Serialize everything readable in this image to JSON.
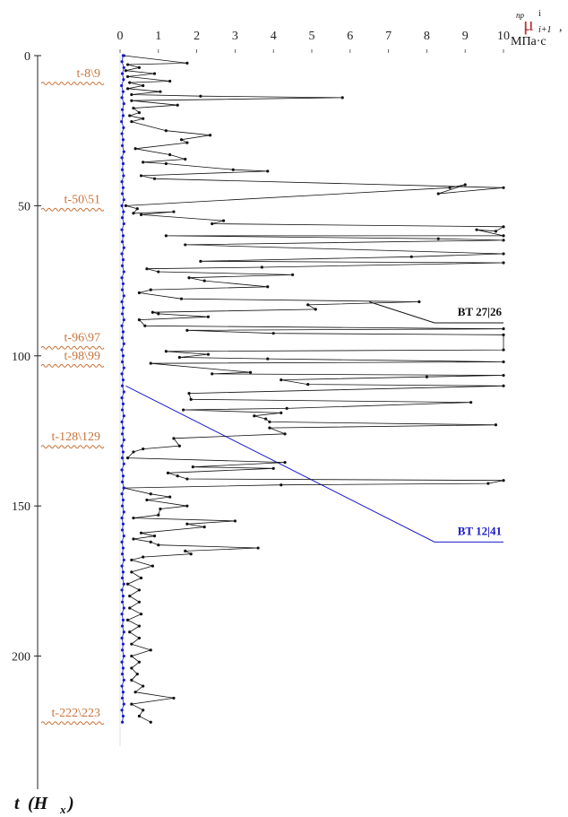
{
  "chart_data": {
    "type": "line",
    "y_axis": {
      "title_main": "t",
      "title_sub": "(H",
      "title_sub_index": "x",
      "title_close": ")",
      "ticks": [
        0,
        50,
        100,
        150,
        200
      ],
      "range": [
        0,
        230
      ],
      "direction": "downward"
    },
    "x_axis": {
      "ticks": [
        0,
        1,
        2,
        3,
        4,
        5,
        6,
        7,
        8,
        9,
        10
      ],
      "range": [
        0,
        10
      ],
      "position": "top",
      "label_symbol": "μ",
      "label_superscript_left": "пр",
      "label_superscript_right": "i",
      "label_subscript": "i+1",
      "label_comma": ",",
      "label_units": "МПа·с"
    },
    "event_labels": [
      {
        "text": "t-8\\9",
        "t": 9
      },
      {
        "text": "t-50\\51",
        "t": 51
      },
      {
        "text": "t-96\\97",
        "t": 97
      },
      {
        "text": "t-98\\99",
        "t": 103
      },
      {
        "text": "t-128\\129",
        "t": 130
      },
      {
        "text": "t-222\\223",
        "t": 222
      }
    ],
    "callouts": [
      {
        "text": "BT 27|26",
        "color": "#111111",
        "from": {
          "x": 6.5,
          "t": 82
        },
        "to": {
          "x": 8.2,
          "t": 89
        }
      },
      {
        "text": "BT 12|41",
        "color": "#1a1acc",
        "from": {
          "x": 0.15,
          "t": 110
        },
        "to": {
          "x": 8.2,
          "t": 162
        }
      }
    ],
    "series": [
      {
        "color": "#1a1acc",
        "marker": "dot",
        "values": [
          [
            0.08,
            0
          ],
          [
            0.05,
            2
          ],
          [
            0.1,
            4
          ],
          [
            0.06,
            6
          ],
          [
            0.09,
            8
          ],
          [
            0.04,
            10
          ],
          [
            0.08,
            12
          ],
          [
            0.05,
            14
          ],
          [
            0.1,
            16
          ],
          [
            0.06,
            18
          ],
          [
            0.08,
            20
          ],
          [
            0.04,
            22
          ],
          [
            0.09,
            24
          ],
          [
            0.05,
            26
          ],
          [
            0.08,
            28
          ],
          [
            0.06,
            30
          ],
          [
            0.1,
            32
          ],
          [
            0.05,
            34
          ],
          [
            0.08,
            36
          ],
          [
            0.06,
            38
          ],
          [
            0.09,
            40
          ],
          [
            0.05,
            42
          ],
          [
            0.08,
            44
          ],
          [
            0.06,
            46
          ],
          [
            0.1,
            48
          ],
          [
            0.05,
            50
          ],
          [
            0.09,
            52
          ],
          [
            0.06,
            54
          ],
          [
            0.1,
            56
          ],
          [
            0.05,
            58
          ],
          [
            0.08,
            60
          ],
          [
            0.06,
            62
          ],
          [
            0.1,
            64
          ],
          [
            0.05,
            66
          ],
          [
            0.08,
            68
          ],
          [
            0.06,
            70
          ],
          [
            0.1,
            72
          ],
          [
            0.05,
            74
          ],
          [
            0.08,
            76
          ],
          [
            0.06,
            78
          ],
          [
            0.1,
            80
          ],
          [
            0.05,
            82
          ],
          [
            0.08,
            84
          ],
          [
            0.06,
            86
          ],
          [
            0.1,
            88
          ],
          [
            0.05,
            90
          ],
          [
            0.08,
            92
          ],
          [
            0.06,
            94
          ],
          [
            0.1,
            96
          ],
          [
            0.05,
            98
          ],
          [
            0.08,
            100
          ],
          [
            0.06,
            102
          ],
          [
            0.1,
            104
          ],
          [
            0.05,
            106
          ],
          [
            0.08,
            108
          ],
          [
            0.06,
            110
          ],
          [
            0.1,
            112
          ],
          [
            0.05,
            114
          ],
          [
            0.08,
            116
          ],
          [
            0.06,
            118
          ],
          [
            0.1,
            120
          ],
          [
            0.05,
            122
          ],
          [
            0.08,
            124
          ],
          [
            0.06,
            126
          ],
          [
            0.1,
            128
          ],
          [
            0.05,
            130
          ],
          [
            0.08,
            132
          ],
          [
            0.06,
            134
          ],
          [
            0.1,
            136
          ],
          [
            0.05,
            138
          ],
          [
            0.08,
            140
          ],
          [
            0.06,
            142
          ],
          [
            0.1,
            144
          ],
          [
            0.05,
            146
          ],
          [
            0.08,
            148
          ],
          [
            0.06,
            150
          ],
          [
            0.1,
            152
          ],
          [
            0.05,
            154
          ],
          [
            0.08,
            156
          ],
          [
            0.06,
            158
          ],
          [
            0.1,
            160
          ],
          [
            0.05,
            162
          ],
          [
            0.08,
            164
          ],
          [
            0.06,
            166
          ],
          [
            0.1,
            168
          ],
          [
            0.05,
            170
          ],
          [
            0.08,
            172
          ],
          [
            0.06,
            174
          ],
          [
            0.1,
            176
          ],
          [
            0.05,
            178
          ],
          [
            0.08,
            180
          ],
          [
            0.06,
            182
          ],
          [
            0.1,
            184
          ],
          [
            0.05,
            186
          ],
          [
            0.08,
            188
          ],
          [
            0.06,
            190
          ],
          [
            0.1,
            192
          ],
          [
            0.05,
            194
          ],
          [
            0.08,
            196
          ],
          [
            0.06,
            198
          ],
          [
            0.1,
            200
          ],
          [
            0.05,
            202
          ],
          [
            0.08,
            204
          ],
          [
            0.06,
            206
          ],
          [
            0.1,
            208
          ],
          [
            0.05,
            210
          ],
          [
            0.08,
            212
          ],
          [
            0.06,
            214
          ],
          [
            0.1,
            216
          ],
          [
            0.05,
            218
          ],
          [
            0.08,
            220
          ],
          [
            0.06,
            222
          ]
        ]
      },
      {
        "color": "#111111",
        "marker": "dot",
        "values": [
          [
            0.1,
            0
          ],
          [
            1.75,
            2.5
          ],
          [
            0.2,
            3
          ],
          [
            0.5,
            4
          ],
          [
            0.15,
            5
          ],
          [
            0.9,
            6
          ],
          [
            0.2,
            7
          ],
          [
            1.3,
            8.5
          ],
          [
            0.25,
            9
          ],
          [
            0.6,
            10
          ],
          [
            0.2,
            11
          ],
          [
            1.05,
            12
          ],
          [
            0.3,
            13
          ],
          [
            2.1,
            13.5
          ],
          [
            5.8,
            14
          ],
          [
            0.3,
            15
          ],
          [
            1.5,
            16.5
          ],
          [
            0.35,
            17.5
          ],
          [
            0.5,
            19
          ],
          [
            0.25,
            20
          ],
          [
            0.6,
            21
          ],
          [
            0.3,
            22
          ],
          [
            1.2,
            25
          ],
          [
            2.35,
            26.5
          ],
          [
            1.6,
            28
          ],
          [
            1.75,
            29
          ],
          [
            0.4,
            31
          ],
          [
            1.3,
            33
          ],
          [
            1.7,
            34.5
          ],
          [
            0.6,
            35.5
          ],
          [
            1.2,
            36
          ],
          [
            2.95,
            38
          ],
          [
            3.85,
            38.5
          ],
          [
            0.55,
            40
          ],
          [
            0.9,
            41
          ],
          [
            10,
            44
          ],
          [
            8.3,
            46
          ],
          [
            9,
            43
          ],
          [
            8.6,
            44
          ],
          [
            0.15,
            50
          ],
          [
            0.45,
            51
          ],
          [
            0.35,
            52.5
          ],
          [
            1.4,
            52
          ],
          [
            0.55,
            53
          ],
          [
            2.7,
            55
          ],
          [
            2.4,
            56
          ],
          [
            10,
            57
          ],
          [
            9.8,
            58.5
          ],
          [
            9.3,
            58
          ],
          [
            10,
            60
          ],
          [
            1.2,
            60
          ],
          [
            8.3,
            61
          ],
          [
            10,
            61.5
          ],
          [
            1.7,
            63
          ],
          [
            10,
            66
          ],
          [
            7.6,
            67
          ],
          [
            2.1,
            68.5
          ],
          [
            10,
            69
          ],
          [
            3.7,
            70.5
          ],
          [
            0.7,
            71
          ],
          [
            1.0,
            72
          ],
          [
            4.5,
            73
          ],
          [
            1.8,
            74
          ],
          [
            2.2,
            75
          ],
          [
            3.85,
            77
          ],
          [
            0.8,
            78
          ],
          [
            0.5,
            79
          ],
          [
            1.6,
            81
          ],
          [
            7.8,
            82
          ],
          [
            4.9,
            83
          ],
          [
            5.1,
            84.5
          ],
          [
            0.85,
            85.5
          ],
          [
            1.0,
            86
          ],
          [
            2.3,
            87
          ],
          [
            0.5,
            88
          ],
          [
            0.65,
            90
          ],
          [
            10,
            91
          ],
          [
            1.75,
            91.5
          ],
          [
            4.0,
            92.5
          ],
          [
            10,
            93
          ],
          [
            10,
            98
          ],
          [
            1.2,
            98.5
          ],
          [
            2.3,
            99.5
          ],
          [
            1.55,
            100.5
          ],
          [
            3.85,
            101
          ],
          [
            10,
            102
          ],
          [
            0.8,
            102.5
          ],
          [
            3.4,
            105.5
          ],
          [
            2.4,
            106
          ],
          [
            10,
            106.5
          ],
          [
            8.0,
            107
          ],
          [
            4.2,
            108
          ],
          [
            4.9,
            109.5
          ],
          [
            10,
            110
          ],
          [
            1.8,
            112.5
          ],
          [
            1.85,
            114.5
          ],
          [
            9.15,
            115.5
          ],
          [
            4.35,
            117.5
          ],
          [
            1.65,
            118
          ],
          [
            4.2,
            119
          ],
          [
            3.5,
            120
          ],
          [
            3.8,
            121
          ],
          [
            3.9,
            122
          ],
          [
            9.8,
            123
          ],
          [
            3.9,
            124
          ],
          [
            4.3,
            126
          ],
          [
            1.4,
            127.5
          ],
          [
            1.55,
            130
          ],
          [
            0.6,
            131
          ],
          [
            0.35,
            132
          ],
          [
            0.2,
            134
          ],
          [
            4.3,
            135.5
          ],
          [
            1.9,
            137
          ],
          [
            4.0,
            137.5
          ],
          [
            1.25,
            139
          ],
          [
            1.5,
            140
          ],
          [
            1.75,
            141
          ],
          [
            10,
            141.5
          ],
          [
            9.6,
            142.5
          ],
          [
            4.2,
            143
          ],
          [
            0.1,
            144
          ],
          [
            0.8,
            146
          ],
          [
            1.3,
            147
          ],
          [
            0.7,
            148
          ],
          [
            1.75,
            150
          ],
          [
            1.05,
            151
          ],
          [
            1.0,
            153
          ],
          [
            0.35,
            154
          ],
          [
            3.0,
            155
          ],
          [
            1.75,
            156
          ],
          [
            2.2,
            157
          ],
          [
            0.55,
            159
          ],
          [
            0.9,
            160
          ],
          [
            0.35,
            161
          ],
          [
            0.8,
            162
          ],
          [
            1.0,
            163
          ],
          [
            3.6,
            164
          ],
          [
            1.7,
            165
          ],
          [
            1.85,
            166
          ],
          [
            0.6,
            167
          ],
          [
            0.3,
            168
          ],
          [
            0.85,
            170
          ],
          [
            0.3,
            172
          ],
          [
            0.55,
            174
          ],
          [
            0.2,
            176
          ],
          [
            0.5,
            178
          ],
          [
            0.25,
            180
          ],
          [
            0.5,
            182
          ],
          [
            0.25,
            184
          ],
          [
            0.55,
            186
          ],
          [
            0.2,
            188
          ],
          [
            0.5,
            190
          ],
          [
            0.25,
            192
          ],
          [
            0.5,
            194
          ],
          [
            0.3,
            196
          ],
          [
            0.8,
            198
          ],
          [
            0.3,
            200
          ],
          [
            0.5,
            202
          ],
          [
            0.3,
            204
          ],
          [
            0.45,
            206
          ],
          [
            0.3,
            208
          ],
          [
            0.6,
            210
          ],
          [
            0.4,
            212
          ],
          [
            1.4,
            214
          ],
          [
            0.3,
            216
          ],
          [
            0.6,
            218
          ],
          [
            0.5,
            220
          ],
          [
            0.8,
            222
          ]
        ]
      }
    ]
  }
}
